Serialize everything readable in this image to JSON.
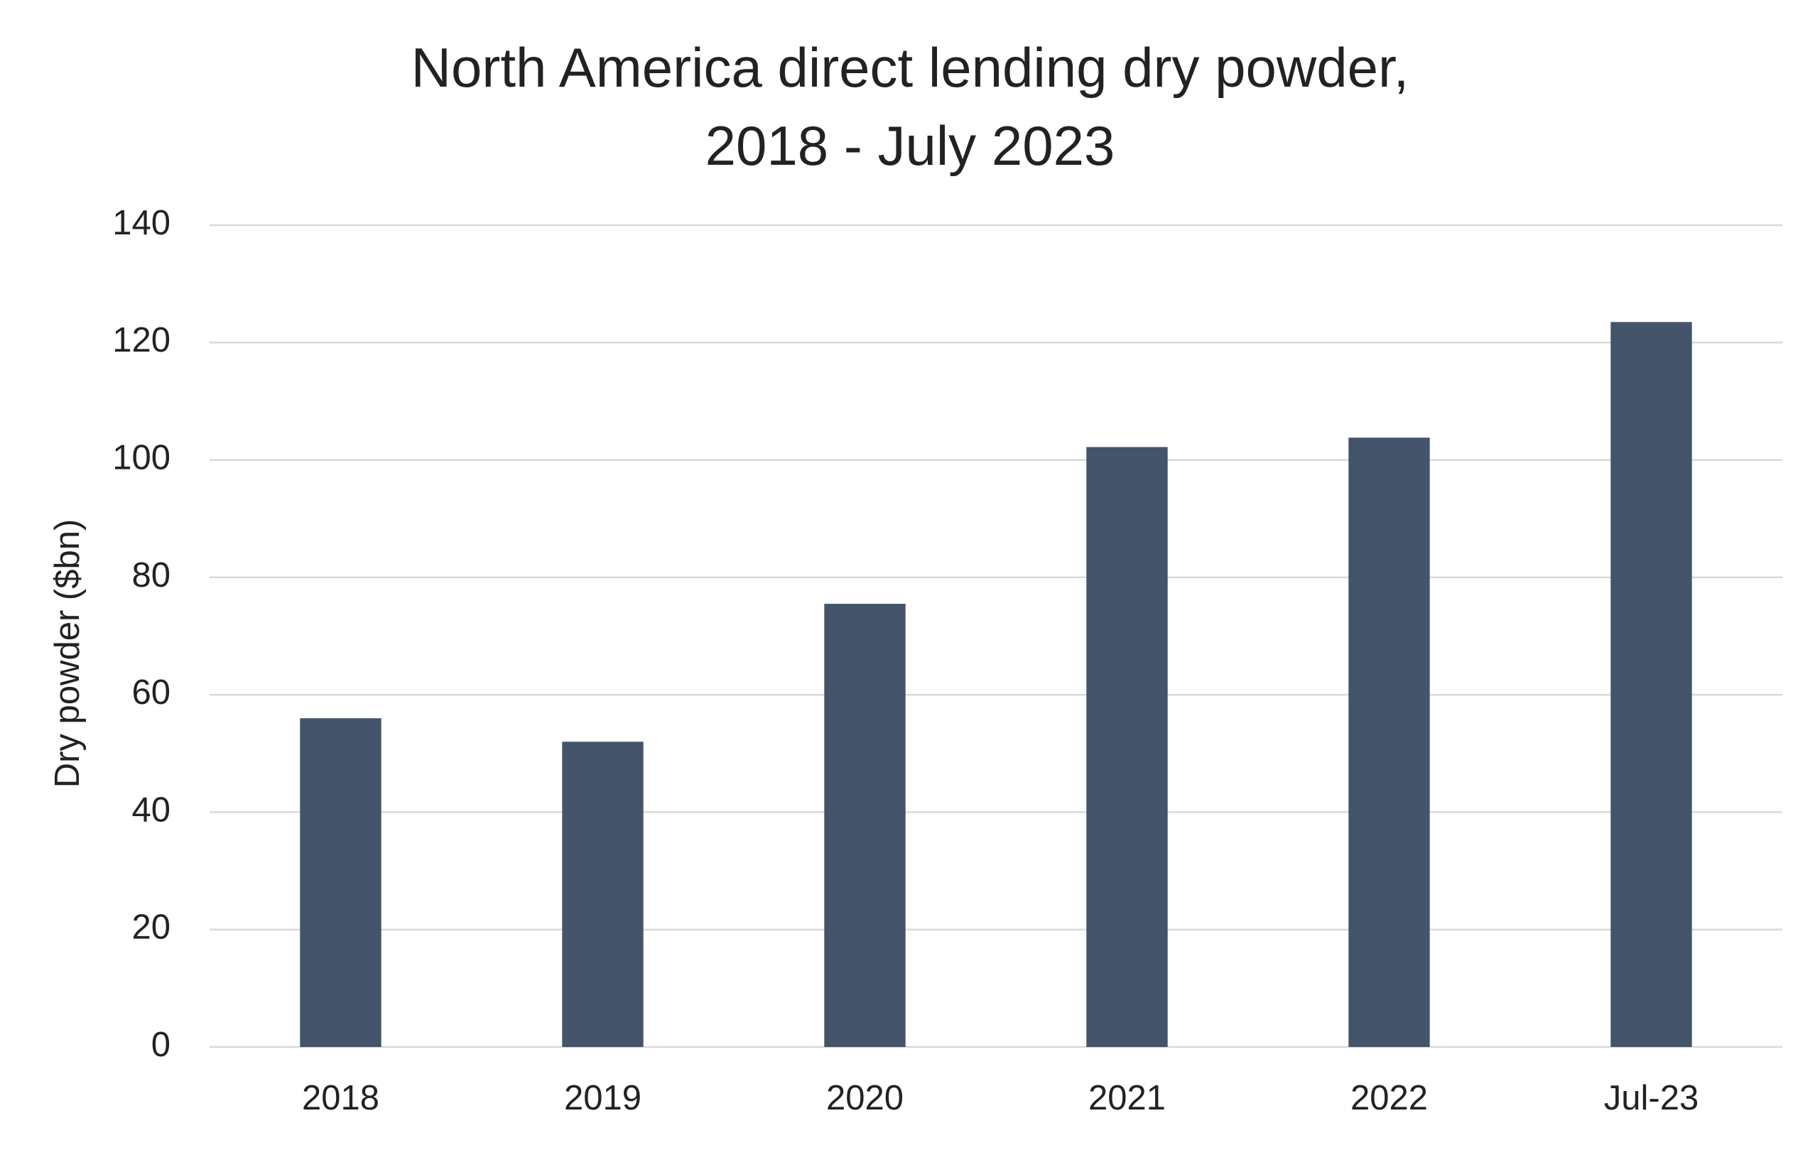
{
  "chart_data": {
    "type": "bar",
    "title": "North America direct lending dry powder,\n2018 - July 2023",
    "y_label": "Dry powder ($bn)",
    "categories": [
      "2018",
      "2019",
      "2020",
      "2021",
      "2022",
      "Jul-23"
    ],
    "values": [
      56,
      52,
      75.5,
      102.2,
      103.8,
      123.5
    ],
    "color": "#44546a",
    "ylim": [
      0,
      140
    ],
    "yticks": [
      0,
      20,
      40,
      60,
      80,
      100,
      120,
      140
    ],
    "grid": true
  }
}
